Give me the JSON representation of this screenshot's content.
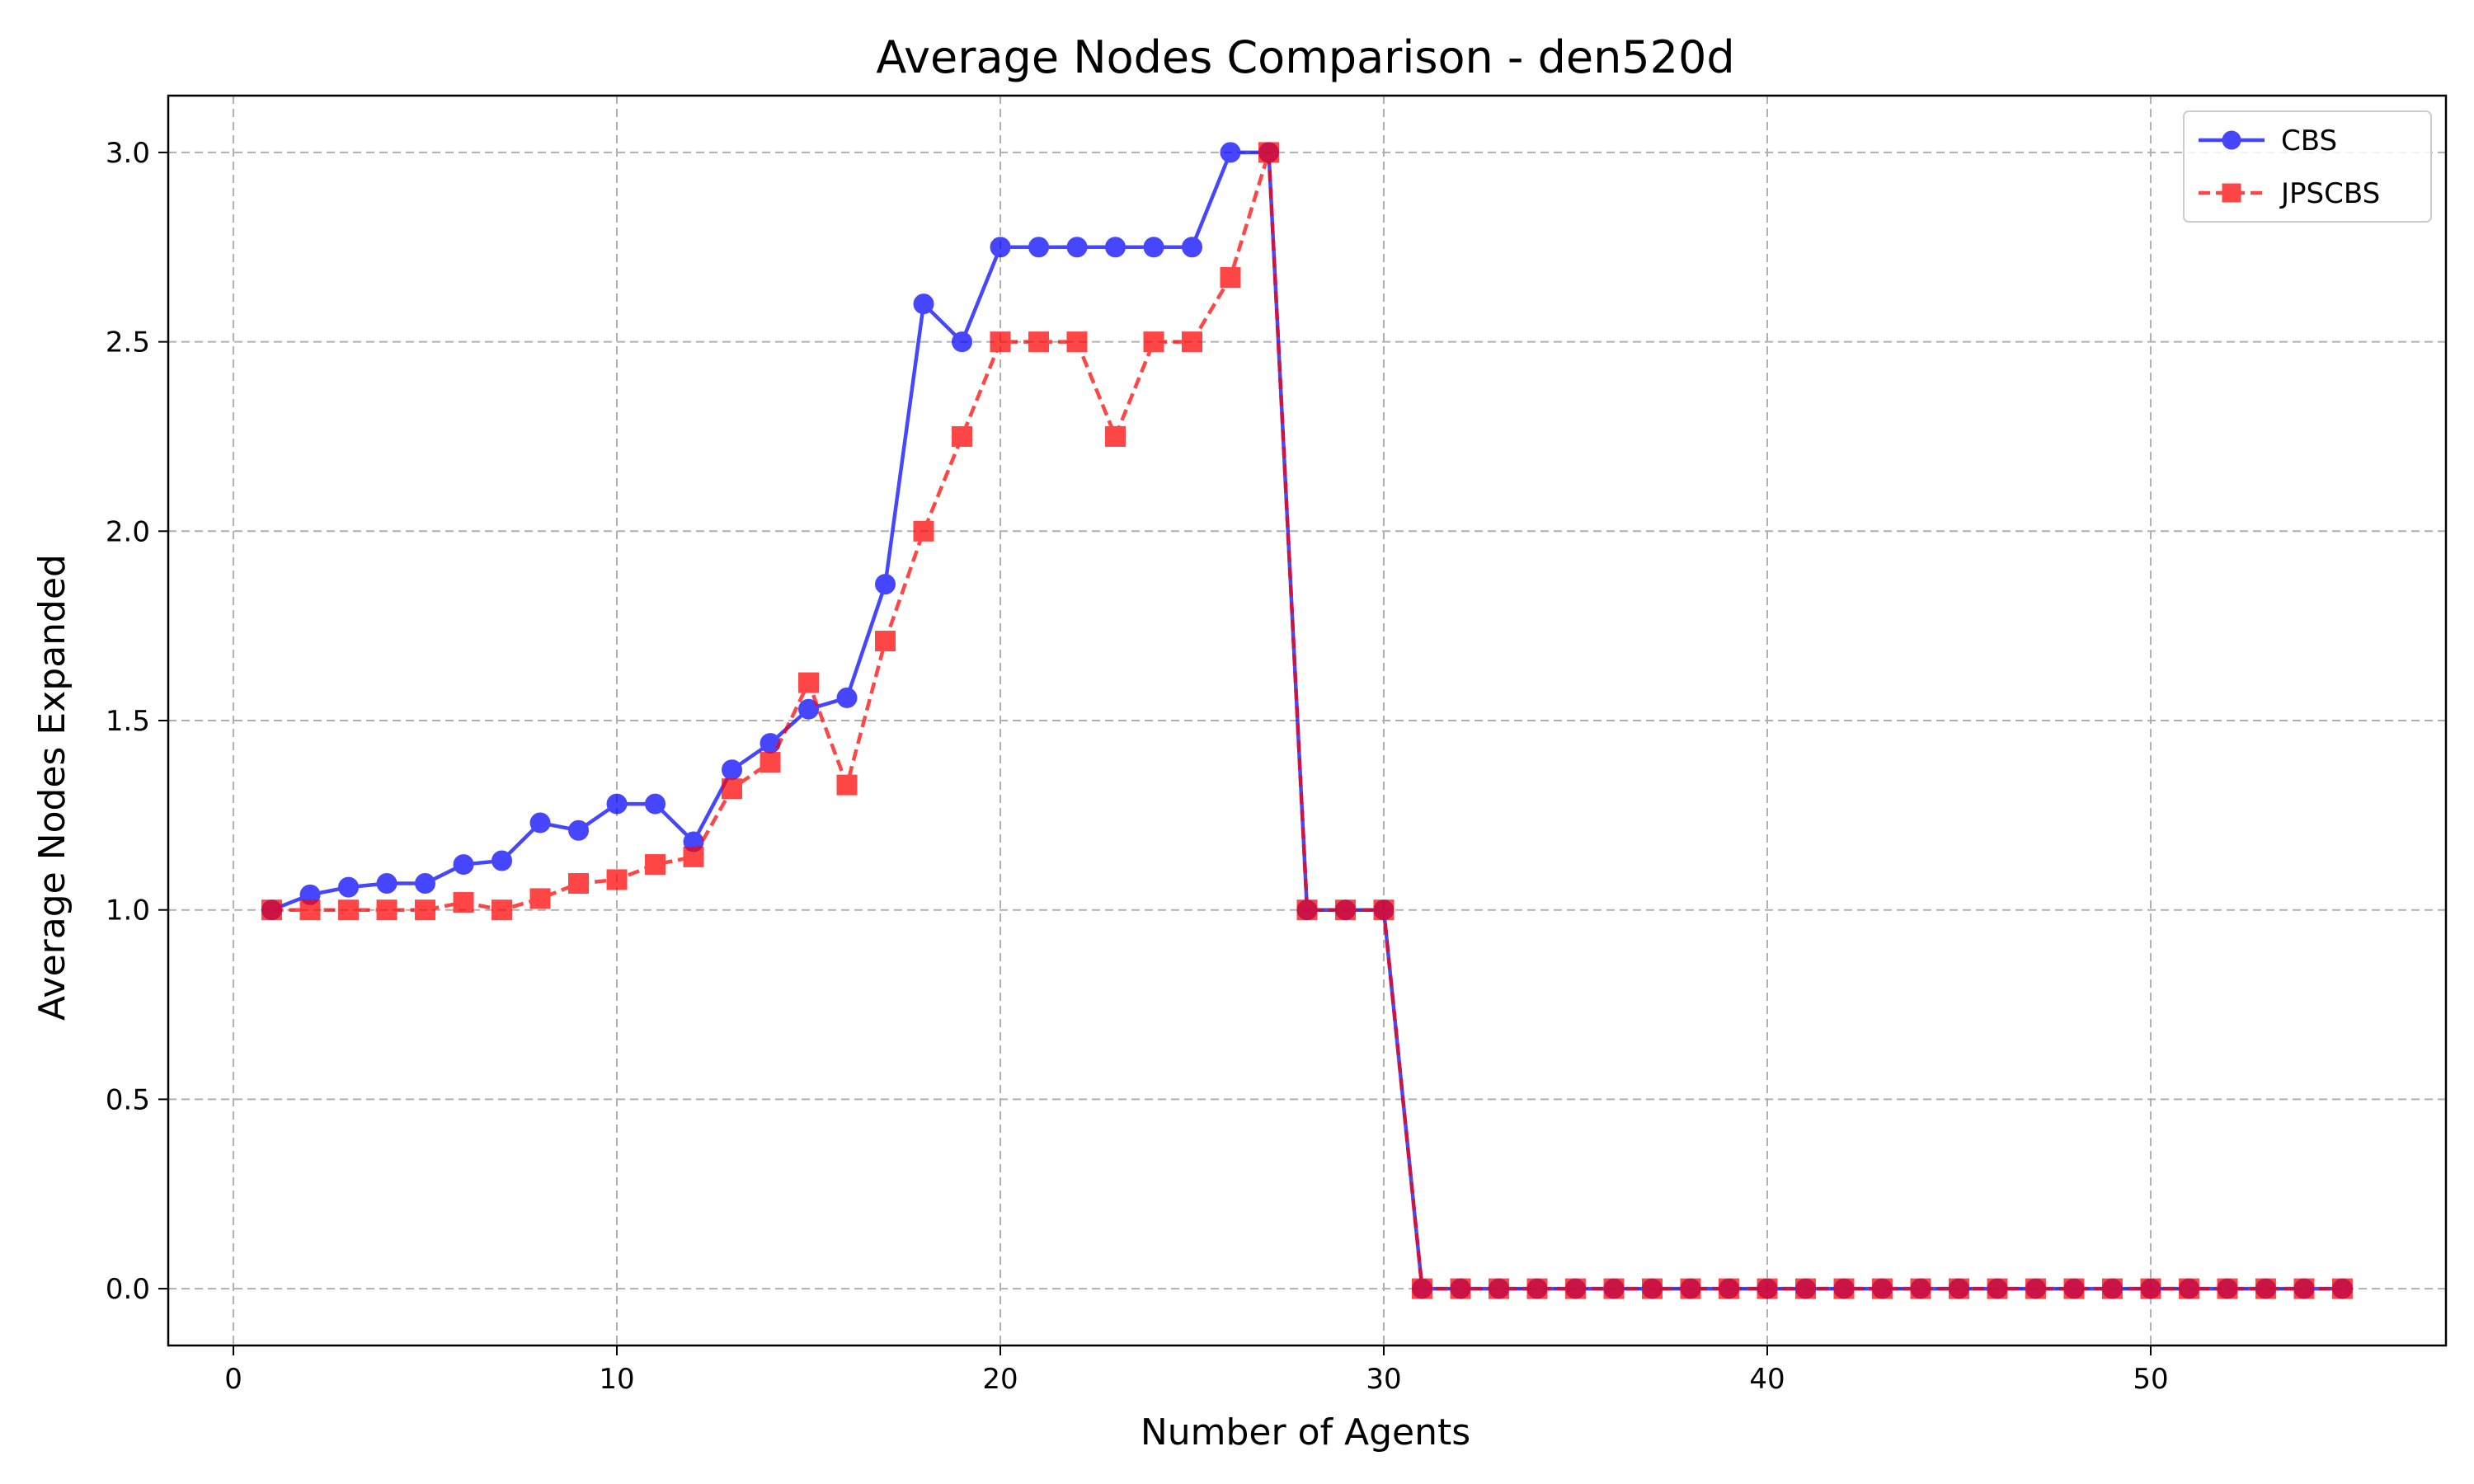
{
  "chart_data": {
    "type": "line",
    "title": "Average Nodes Comparison - den520d",
    "xlabel": "Number of Agents",
    "ylabel": "Average Nodes Expanded",
    "xlim": [
      -1.7,
      57.7
    ],
    "ylim": [
      -0.15,
      3.15
    ],
    "xticks": [
      0,
      10,
      20,
      30,
      40,
      50
    ],
    "yticks": [
      0.0,
      0.5,
      1.0,
      1.5,
      2.0,
      2.5,
      3.0
    ],
    "grid": true,
    "legend_position": "top-right",
    "x": [
      1,
      2,
      3,
      4,
      5,
      6,
      7,
      8,
      9,
      10,
      11,
      12,
      13,
      14,
      15,
      16,
      17,
      18,
      19,
      20,
      21,
      22,
      23,
      24,
      25,
      26,
      27,
      28,
      29,
      30,
      31,
      32,
      33,
      34,
      35,
      36,
      37,
      38,
      39,
      40,
      41,
      42,
      43,
      44,
      45,
      46,
      47,
      48,
      49,
      50,
      51,
      52,
      53,
      54,
      55
    ],
    "series": [
      {
        "name": "CBS",
        "color": "#0000ff",
        "marker": "circle",
        "linestyle": "solid",
        "values": [
          1.0,
          1.04,
          1.06,
          1.07,
          1.07,
          1.12,
          1.13,
          1.23,
          1.21,
          1.28,
          1.28,
          1.18,
          1.37,
          1.44,
          1.53,
          1.56,
          1.86,
          2.6,
          2.5,
          2.75,
          2.75,
          2.75,
          2.75,
          2.75,
          2.75,
          3.0,
          3.0,
          1.0,
          1.0,
          1.0,
          0,
          0,
          0,
          0,
          0,
          0,
          0,
          0,
          0,
          0,
          0,
          0,
          0,
          0,
          0,
          0,
          0,
          0,
          0,
          0,
          0,
          0,
          0,
          0,
          0
        ]
      },
      {
        "name": "JPSCBS",
        "color": "#ff0000",
        "marker": "square",
        "linestyle": "dashed",
        "values": [
          1.0,
          1.0,
          1.0,
          1.0,
          1.0,
          1.02,
          1.0,
          1.03,
          1.07,
          1.08,
          1.12,
          1.14,
          1.32,
          1.39,
          1.6,
          1.33,
          1.71,
          2.0,
          2.25,
          2.5,
          2.5,
          2.5,
          2.25,
          2.5,
          2.5,
          2.67,
          3.0,
          1.0,
          1.0,
          1.0,
          0,
          0,
          0,
          0,
          0,
          0,
          0,
          0,
          0,
          0,
          0,
          0,
          0,
          0,
          0,
          0,
          0,
          0,
          0,
          0,
          0,
          0,
          0,
          0,
          0
        ]
      }
    ]
  }
}
